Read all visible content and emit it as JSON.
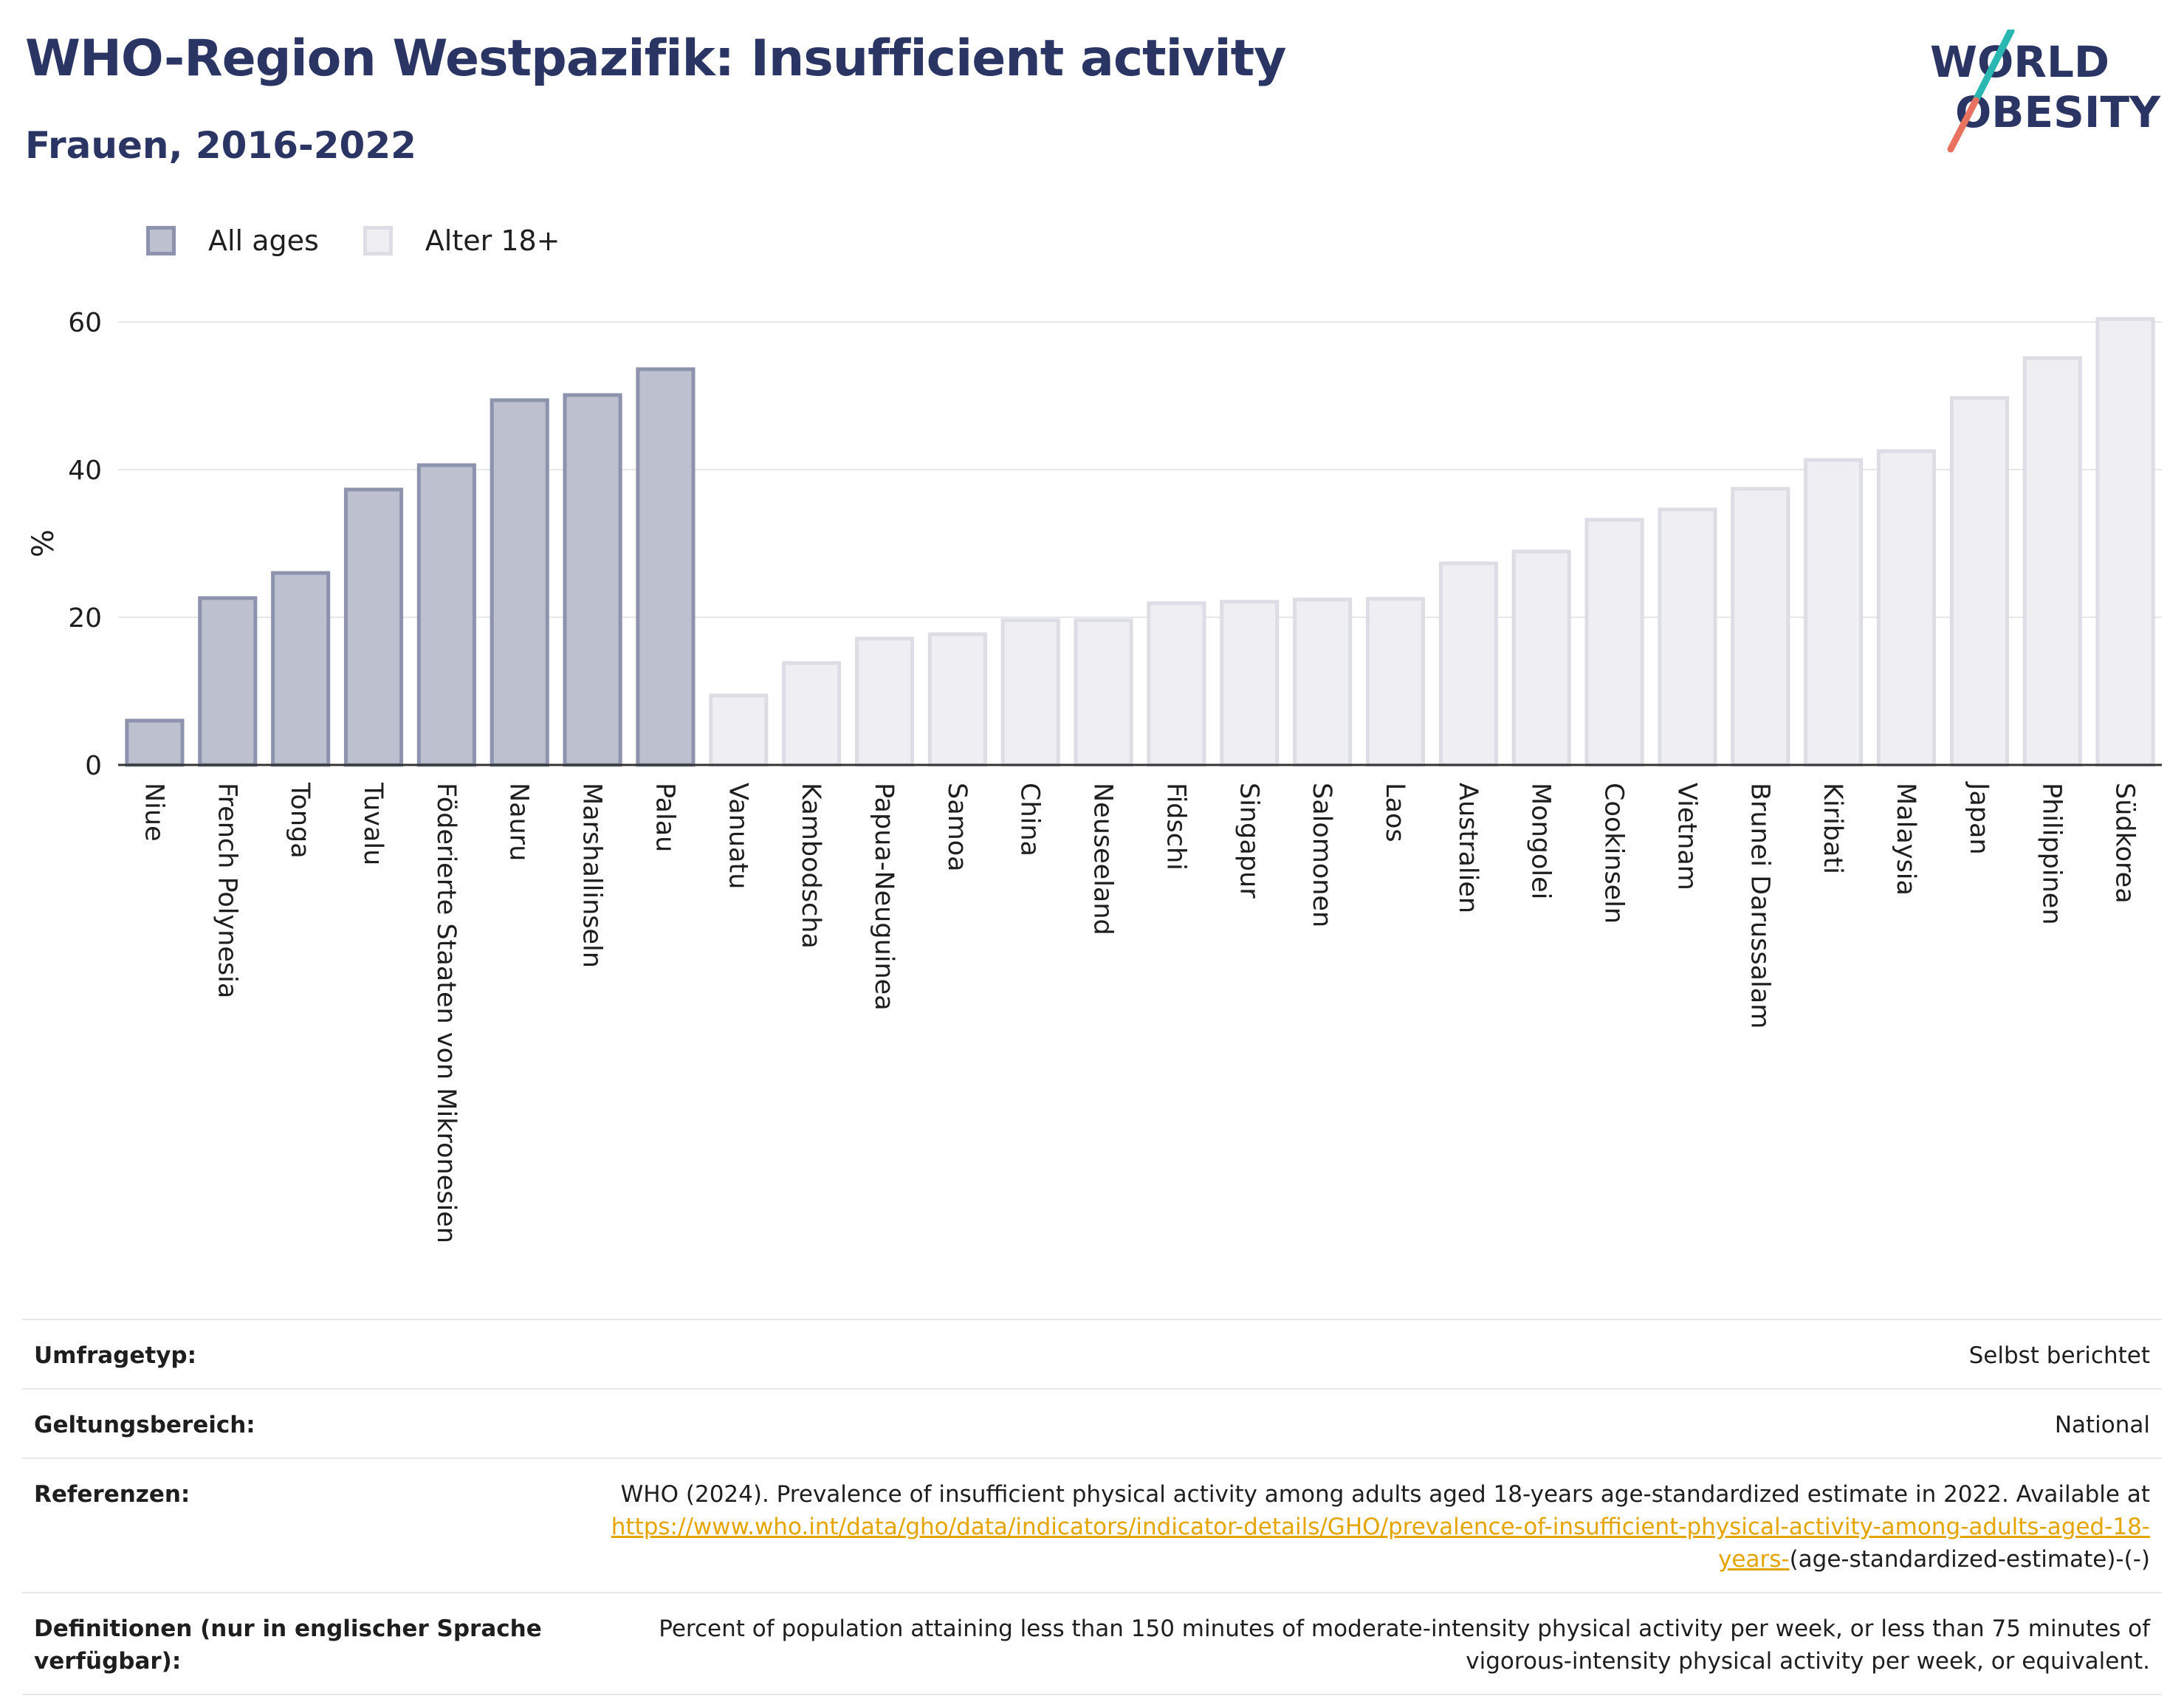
{
  "header": {
    "title": "WHO-Region Westpazifik: Insufficient activity",
    "subtitle": "Frauen, 2016-2022"
  },
  "logo": {
    "line1": "WORLD",
    "line2": "OBESITY",
    "colors": {
      "text": "#2b3563",
      "slash_teal": "#2ab7b1",
      "slash_coral": "#e8715f"
    }
  },
  "legend": {
    "items": [
      {
        "label": "All ages",
        "fill": "#bcc0cf",
        "stroke": "#8d93ac"
      },
      {
        "label": "Alter 18+",
        "fill": "#eeeef3",
        "stroke": "#dcdde5"
      }
    ]
  },
  "chart_data": {
    "type": "bar",
    "ylabel": "%",
    "xlabel": "",
    "ylim": [
      0,
      60
    ],
    "yticks": [
      0,
      20,
      40,
      60
    ],
    "grid": true,
    "legend_position": "top-left",
    "categories": [
      "Niue",
      "French Polynesia",
      "Tonga",
      "Tuvalu",
      "Föderierte Staaten von Mikronesien",
      "Nauru",
      "Marshallinseln",
      "Palau",
      "Vanuatu",
      "Kambodscha",
      "Papua-Neuguinea",
      "Samoa",
      "China",
      "Neuseeland",
      "Fidschi",
      "Singapur",
      "Salomonen",
      "Laos",
      "Australien",
      "Mongolei",
      "Cookinseln",
      "Vietnam",
      "Brunei Darussalam",
      "Kiribati",
      "Malaysia",
      "Japan",
      "Philippinen",
      "Südkorea"
    ],
    "values": [
      6.0,
      22.6,
      26.0,
      37.3,
      40.6,
      49.4,
      50.1,
      53.6,
      9.4,
      13.8,
      17.1,
      17.7,
      19.6,
      19.6,
      21.9,
      22.1,
      22.4,
      22.5,
      27.3,
      28.9,
      33.2,
      34.6,
      37.4,
      41.3,
      42.5,
      49.7,
      55.1,
      60.4
    ],
    "series_index": [
      0,
      0,
      0,
      0,
      0,
      0,
      0,
      0,
      1,
      1,
      1,
      1,
      1,
      1,
      1,
      1,
      1,
      1,
      1,
      1,
      1,
      1,
      1,
      1,
      1,
      1,
      1,
      1
    ],
    "series": [
      {
        "name": "All ages"
      },
      {
        "name": "Alter 18+"
      }
    ]
  },
  "info": {
    "survey": {
      "key": "Umfragetyp:",
      "value": "Selbst berichtet"
    },
    "scope": {
      "key": "Geltungsbereich:",
      "value": "National"
    },
    "references": {
      "key": "Referenzen:",
      "text": "WHO (2024). Prevalence of insufficient physical activity among adults aged 18-years age-standardized estimate in 2022. Available at",
      "link": "https://www.who.int/data/gho/data/indicators/indicator-details/GHO/prevalence-of-insufficient-physical-activity-among-adults-aged-18-years-",
      "suffix": "(age-standardized-estimate)-(-)"
    },
    "definitions": {
      "key": "Definitionen (nur in englischer Sprache verfügbar):",
      "value": "Percent of population attaining less than 150 minutes of moderate-intensity physical activity per week, or less than 75 minutes of vigorous-intensity physical activity per week, or equivalent."
    }
  }
}
